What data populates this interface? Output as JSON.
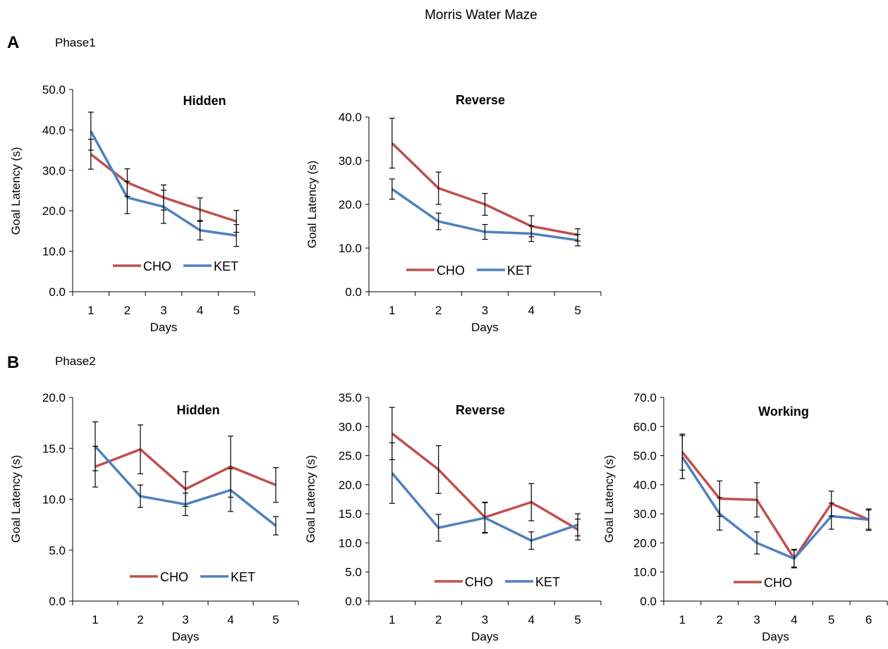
{
  "figure": {
    "title": "Morris Water Maze",
    "panel_a_letter": "A",
    "panel_a_label": "Phase1",
    "panel_b_letter": "B",
    "panel_b_label": "Phase2"
  },
  "colors": {
    "CHO": "#c0504d",
    "KET": "#4f81bd",
    "error_bar": "#000000",
    "axis": "#000000"
  },
  "chart_data": [
    {
      "type": "line",
      "panel": "A",
      "title": "Hidden",
      "xlabel": "Days",
      "ylabel": "Goal Latency (s)",
      "categories": [
        "1",
        "2",
        "3",
        "4",
        "5"
      ],
      "ylim": [
        0,
        50
      ],
      "ytick_step": 10,
      "ytick_labels": [
        "0.0",
        "10.0",
        "20.0",
        "30.0",
        "40.0",
        "50.0"
      ],
      "legend": "bottom",
      "grid": false,
      "series": [
        {
          "name": "CHO",
          "values": [
            34.0,
            27.0,
            23.3,
            20.3,
            17.4
          ],
          "errors": [
            3.7,
            3.4,
            3.1,
            2.9,
            2.7
          ]
        },
        {
          "name": "KET",
          "values": [
            39.7,
            23.3,
            21.0,
            15.2,
            13.9
          ],
          "errors": [
            4.7,
            4.0,
            4.1,
            2.4,
            2.7
          ]
        }
      ]
    },
    {
      "type": "line",
      "panel": "A",
      "title": "Reverse",
      "xlabel": "Days",
      "ylabel": "Goal Latency (s)",
      "categories": [
        "1",
        "2",
        "3",
        "4",
        "5"
      ],
      "ylim": [
        0,
        40
      ],
      "ytick_step": 10,
      "ytick_labels": [
        "0.0",
        "10.0",
        "20.0",
        "30.0",
        "40.0"
      ],
      "legend": "bottom",
      "grid": false,
      "series": [
        {
          "name": "CHO",
          "values": [
            34.0,
            23.7,
            20.0,
            15.0,
            13.0
          ],
          "errors": [
            5.7,
            3.7,
            2.5,
            2.4,
            1.4
          ]
        },
        {
          "name": "KET",
          "values": [
            23.5,
            16.1,
            13.7,
            13.3,
            11.8
          ],
          "errors": [
            2.3,
            1.9,
            1.7,
            1.8,
            1.3
          ]
        }
      ]
    },
    {
      "type": "line",
      "panel": "B",
      "title": "Hidden",
      "xlabel": "Days",
      "ylabel": "Goal Latency (s)",
      "categories": [
        "1",
        "2",
        "3",
        "4",
        "5"
      ],
      "ylim": [
        0,
        20
      ],
      "ytick_step": 5,
      "ytick_labels": [
        "0.0",
        "5.0",
        "10.0",
        "15.0",
        "20.0"
      ],
      "legend": "bottom",
      "grid": false,
      "series": [
        {
          "name": "CHO",
          "values": [
            13.2,
            14.9,
            11.0,
            13.2,
            11.4
          ],
          "errors": [
            2.0,
            2.4,
            1.7,
            3.0,
            1.7
          ]
        },
        {
          "name": "KET",
          "values": [
            15.2,
            10.3,
            9.5,
            10.9,
            7.4
          ],
          "errors": [
            2.4,
            1.1,
            1.1,
            2.1,
            0.9
          ]
        }
      ]
    },
    {
      "type": "line",
      "panel": "B",
      "title": "Reverse",
      "xlabel": "Days",
      "ylabel": "Goal Latency (s)",
      "categories": [
        "1",
        "2",
        "3",
        "4",
        "5"
      ],
      "ylim": [
        0,
        35
      ],
      "ytick_step": 5,
      "ytick_labels": [
        "0.0",
        "5.0",
        "10.0",
        "15.0",
        "20.0",
        "25.0",
        "30.0",
        "35.0"
      ],
      "legend": "bottom",
      "grid": false,
      "series": [
        {
          "name": "CHO",
          "values": [
            28.8,
            22.6,
            14.4,
            17.0,
            12.3
          ],
          "errors": [
            4.5,
            4.1,
            2.6,
            3.2,
            1.8
          ]
        },
        {
          "name": "KET",
          "values": [
            22.0,
            12.6,
            14.3,
            10.4,
            13.1
          ],
          "errors": [
            5.2,
            2.3,
            2.6,
            1.5,
            1.9
          ]
        }
      ]
    },
    {
      "type": "line",
      "panel": "B",
      "title": "Working",
      "xlabel": "Days",
      "ylabel": "Goal Latency (s)",
      "categories": [
        "1",
        "2",
        "3",
        "4",
        "5",
        "6"
      ],
      "ylim": [
        0,
        70
      ],
      "ytick_step": 10,
      "ytick_labels": [
        "0.0",
        "10.0",
        "20.0",
        "30.0",
        "40.0",
        "50.0",
        "60.0",
        "70.0"
      ],
      "legend": "bottom-left",
      "grid": false,
      "series": [
        {
          "name": "CHO",
          "values": [
            51.2,
            35.2,
            34.8,
            14.6,
            33.5,
            28.0
          ],
          "errors": [
            6.2,
            6.1,
            5.9,
            3.2,
            4.3,
            3.7
          ]
        },
        {
          "name": "KET",
          "values": [
            49.5,
            30.0,
            20.0,
            14.6,
            29.2,
            28.0
          ],
          "errors": [
            7.4,
            5.6,
            3.8,
            2.9,
            4.5,
            3.3
          ]
        }
      ],
      "legend_entries": [
        "CHO"
      ]
    }
  ]
}
